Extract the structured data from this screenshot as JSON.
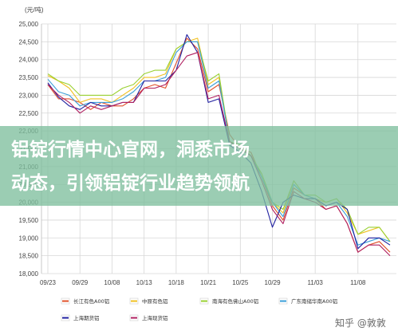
{
  "chart_data": {
    "type": "line",
    "unit_label": "(元/吨)",
    "ylim": [
      18000,
      25000
    ],
    "y_ticks": [
      "18,000",
      "18,500",
      "19,000",
      "19,500",
      "20,000",
      "20,500",
      "21,000",
      "21,500",
      "22,000",
      "22,500",
      "23,000",
      "23,500",
      "24,000",
      "24,500",
      "25,000"
    ],
    "x_ticks": [
      "09/23",
      "09/29",
      "10/08",
      "10/13",
      "10/18",
      "10/21",
      "10/25",
      "10/29",
      "11/03",
      "11/08"
    ],
    "grid": true,
    "legend_position": "bottom",
    "series": [
      {
        "name": "长江有色A00铝",
        "color": "#e0502a",
        "values": [
          23300,
          22900,
          22900,
          22800,
          22600,
          22800,
          22700,
          22700,
          22900,
          23200,
          23300,
          23200,
          23900,
          24600,
          24300,
          23100,
          23300,
          21900,
          21500,
          21400,
          20700,
          19900,
          19500,
          20400,
          20200,
          20100,
          19800,
          19900,
          19400,
          18600,
          18800,
          18900,
          18600
        ]
      },
      {
        "name": "中原有色铝",
        "color": "#f0c020",
        "values": [
          23550,
          23400,
          23200,
          22800,
          22900,
          22900,
          22800,
          23000,
          23200,
          23500,
          23500,
          23600,
          24300,
          24500,
          24600,
          23300,
          23500,
          21700,
          21600,
          21300,
          20800,
          20000,
          19700,
          20600,
          20200,
          20100,
          20000,
          20100,
          19700,
          19100,
          19200,
          19300,
          18900
        ]
      },
      {
        "name": "南海有色佛山A00铝",
        "color": "#99d030",
        "values": [
          23600,
          23400,
          23300,
          23000,
          23000,
          23000,
          23000,
          23200,
          23300,
          23600,
          23700,
          23700,
          24300,
          24500,
          24500,
          23400,
          23600,
          21700,
          21600,
          21300,
          20800,
          20000,
          19800,
          20600,
          20200,
          20200,
          20000,
          20100,
          19800,
          19100,
          19300,
          19300,
          18900
        ]
      },
      {
        "name": "广东南储华南A00铝",
        "color": "#3a9fd8",
        "values": [
          23450,
          23100,
          23000,
          22700,
          22800,
          22800,
          22800,
          22900,
          23100,
          23400,
          23400,
          23500,
          24200,
          24500,
          24500,
          23200,
          23400,
          21700,
          21500,
          21300,
          20700,
          20000,
          19600,
          20500,
          20200,
          20100,
          19900,
          20000,
          19600,
          18800,
          18900,
          19000,
          18900
        ]
      },
      {
        "name": "上海期货铝",
        "color": "#2020a0",
        "values": [
          23350,
          22950,
          22700,
          22600,
          22800,
          22700,
          22700,
          22800,
          22800,
          23400,
          23400,
          23400,
          23700,
          24700,
          24200,
          22800,
          22900,
          21600,
          21400,
          21100,
          20300,
          19300,
          20000,
          20200,
          20100,
          20100,
          19900,
          20000,
          19800,
          18700,
          19000,
          19000,
          18800
        ]
      },
      {
        "name": "上海现货铝",
        "color": "#b02060",
        "values": [
          23300,
          23000,
          22800,
          22500,
          22700,
          22600,
          22700,
          22800,
          22800,
          23200,
          23200,
          23300,
          23700,
          24100,
          24200,
          22900,
          23000,
          21700,
          21500,
          21300,
          20600,
          19800,
          19400,
          20300,
          20100,
          20000,
          19800,
          19900,
          19400,
          18600,
          18800,
          18800,
          18500
        ]
      }
    ],
    "x_tick_index": [
      0,
      3,
      6,
      9,
      12,
      15,
      18,
      21,
      25,
      29
    ]
  },
  "overlay": {
    "line1": "铝锭行情中心官网，洞悉市场",
    "line2": "动态，引领铝锭行业趋势领航"
  },
  "watermark": "知乎 @敦敦",
  "colors": {
    "grid": "#d7d7d7",
    "overlay_band": "#7fbf9e"
  }
}
